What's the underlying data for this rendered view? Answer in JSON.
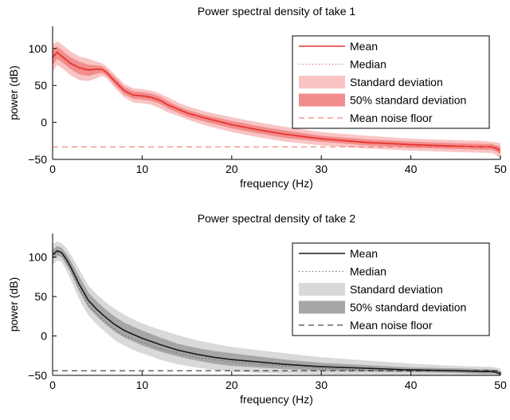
{
  "chart_data": [
    {
      "type": "line",
      "title": "Power spectral density of take 1",
      "xlabel": "frequency (Hz)",
      "ylabel": "power (dB)",
      "xlim": [
        0,
        50
      ],
      "ylim": [
        -50,
        130
      ],
      "xticks": [
        0,
        10,
        20,
        30,
        40,
        50
      ],
      "yticks": [
        -50,
        0,
        50,
        100
      ],
      "legend_position": "top-right",
      "colors": {
        "mean": "#e8302a",
        "median": "#d8504a",
        "std": "#f9c4c4",
        "half_std": "#f28d8d",
        "noise": "#f06a5e"
      },
      "x": [
        0,
        0.5,
        1,
        2,
        3,
        4,
        5,
        5.5,
        6,
        7,
        8,
        9,
        10,
        11,
        12,
        13,
        14,
        15,
        17,
        20,
        23,
        26,
        30,
        35,
        40,
        45,
        48,
        49,
        49.5,
        50
      ],
      "series": [
        {
          "name": "Mean",
          "values": [
            88,
            95,
            90,
            80,
            74,
            71,
            72,
            72,
            68,
            55,
            43,
            37,
            36,
            34,
            30,
            23,
            18,
            13,
            6,
            -3,
            -10,
            -16,
            -22,
            -27,
            -30,
            -32,
            -33,
            -33,
            -35,
            -38
          ]
        },
        {
          "name": "Median",
          "values": [
            86,
            93,
            88,
            78,
            72,
            70,
            71,
            71,
            67,
            54,
            42,
            36,
            35,
            33,
            29,
            22,
            17,
            12,
            5,
            -4,
            -11,
            -17,
            -23,
            -28,
            -31,
            -33,
            -34,
            -34,
            -36,
            -39
          ]
        },
        {
          "name": "Standard deviation",
          "lower": [
            68,
            78,
            74,
            64,
            57,
            56,
            60,
            63,
            60,
            46,
            34,
            27,
            26,
            24,
            19,
            13,
            9,
            4,
            -4,
            -13,
            -20,
            -26,
            -31,
            -35,
            -38,
            -40,
            -41,
            -41,
            -44,
            -49
          ],
          "upper": [
            105,
            110,
            106,
            96,
            89,
            86,
            82,
            80,
            76,
            64,
            52,
            46,
            45,
            43,
            39,
            33,
            27,
            22,
            15,
            7,
            0,
            -6,
            -13,
            -18,
            -22,
            -24,
            -25,
            -26,
            -27,
            -28
          ]
        },
        {
          "name": "50% standard deviation",
          "lower": [
            78,
            86,
            82,
            72,
            65,
            63,
            66,
            67,
            64,
            50,
            38,
            32,
            31,
            29,
            25,
            18,
            13,
            8,
            1,
            -8,
            -15,
            -21,
            -26,
            -31,
            -34,
            -36,
            -37,
            -37,
            -39,
            -43
          ],
          "upper": [
            97,
            103,
            98,
            88,
            82,
            78,
            77,
            76,
            72,
            60,
            48,
            42,
            41,
            39,
            35,
            28,
            22,
            17,
            10,
            2,
            -5,
            -11,
            -18,
            -23,
            -26,
            -28,
            -29,
            -29,
            -31,
            -33
          ]
        },
        {
          "name": "Mean noise floor",
          "value": -33
        }
      ],
      "legend": [
        "Mean",
        "Median",
        "Standard deviation",
        "50% standard deviation",
        "Mean noise floor"
      ]
    },
    {
      "type": "line",
      "title": "Power spectral density of take 2",
      "xlabel": "frequency (Hz)",
      "ylabel": "power (dB)",
      "xlim": [
        0,
        50
      ],
      "ylim": [
        -50,
        130
      ],
      "xticks": [
        0,
        10,
        20,
        30,
        40,
        50
      ],
      "yticks": [
        -50,
        0,
        50,
        100
      ],
      "legend_position": "top-right",
      "colors": {
        "mean": "#1a1a1a",
        "median": "#555555",
        "std": "#d9d9d9",
        "half_std": "#a6a6a6",
        "noise": "#1a1a1a"
      },
      "x": [
        0,
        0.5,
        1,
        1.5,
        2,
        3,
        4,
        5,
        6,
        7,
        8,
        9,
        10,
        12,
        14,
        16,
        18,
        20,
        23,
        26,
        30,
        35,
        40,
        45,
        48,
        49,
        49.5,
        50
      ],
      "series": [
        {
          "name": "Mean",
          "values": [
            103,
            108,
            106,
            98,
            88,
            65,
            45,
            33,
            23,
            14,
            7,
            2,
            -3,
            -11,
            -18,
            -23,
            -27,
            -30,
            -33,
            -36,
            -39,
            -41,
            -43,
            -44,
            -45,
            -45,
            -46,
            -48
          ]
        },
        {
          "name": "Median",
          "values": [
            100,
            106,
            104,
            95,
            84,
            60,
            39,
            27,
            17,
            8,
            1,
            -4,
            -8,
            -16,
            -22,
            -27,
            -30,
            -33,
            -36,
            -38,
            -41,
            -43,
            -44,
            -45,
            -46,
            -46,
            -47,
            -49
          ]
        },
        {
          "name": "Standard deviation",
          "lower": [
            90,
            96,
            94,
            84,
            72,
            46,
            26,
            14,
            4,
            -6,
            -12,
            -18,
            -22,
            -30,
            -36,
            -40,
            -43,
            -45,
            -47,
            -48,
            -49,
            -49,
            -50,
            -50,
            -50,
            -50,
            -50,
            -50
          ],
          "upper": [
            116,
            120,
            118,
            112,
            104,
            84,
            64,
            52,
            42,
            34,
            27,
            21,
            16,
            8,
            1,
            -5,
            -10,
            -14,
            -18,
            -22,
            -27,
            -31,
            -35,
            -38,
            -39,
            -39,
            -40,
            -41
          ]
        },
        {
          "name": "50% standard deviation",
          "lower": [
            97,
            102,
            100,
            91,
            81,
            56,
            36,
            24,
            14,
            5,
            -2,
            -7,
            -12,
            -20,
            -26,
            -31,
            -35,
            -38,
            -40,
            -42,
            -44,
            -45,
            -46,
            -47,
            -48,
            -48,
            -48,
            -50
          ],
          "upper": [
            109,
            114,
            112,
            105,
            96,
            75,
            55,
            43,
            33,
            24,
            17,
            12,
            7,
            -2,
            -10,
            -15,
            -19,
            -22,
            -26,
            -30,
            -34,
            -37,
            -40,
            -41,
            -42,
            -42,
            -43,
            -45
          ]
        },
        {
          "name": "Mean noise floor",
          "value": -44
        }
      ],
      "legend": [
        "Mean",
        "Median",
        "Standard deviation",
        "50% standard deviation",
        "Mean noise floor"
      ]
    }
  ]
}
